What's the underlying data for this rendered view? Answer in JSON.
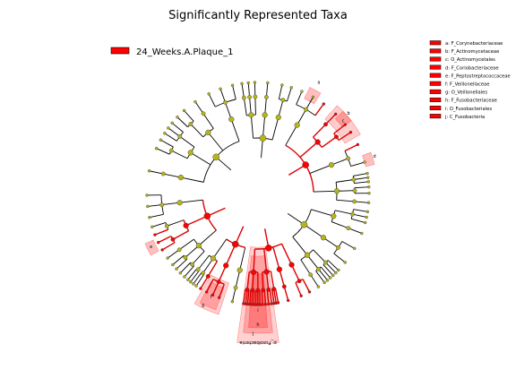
{
  "chart_data": {
    "type": "cladogram",
    "title": "Significantly Represented Taxa",
    "class_legend": [
      {
        "label": "24_Weeks.A.Plaque_1",
        "color": "#ff0000"
      }
    ],
    "colors": {
      "significant_node": "#ff0000",
      "nonsignificant_node": "#b5b51a",
      "highlight_fill": "#ff0000",
      "edge": "#000000"
    },
    "taxa_legend": [
      {
        "letter": "a",
        "name": "a: F_Corynebacteriaceae"
      },
      {
        "letter": "b",
        "name": "b: F_Actinomycetaceae"
      },
      {
        "letter": "c",
        "name": "c: O_Actinomycetales"
      },
      {
        "letter": "d",
        "name": "d: F_Coriobacteriaceae"
      },
      {
        "letter": "e",
        "name": "e: F_Peptostreptococcaceae"
      },
      {
        "letter": "f",
        "name": "f: F_Veillonellaceae"
      },
      {
        "letter": "g",
        "name": "g: O_Veillonellales"
      },
      {
        "letter": "h",
        "name": "h: F_Fusobacteriaceae"
      },
      {
        "letter": "i",
        "name": "i: O_Fusobacteriales"
      },
      {
        "letter": "j",
        "name": "j: C_Fusobacteria"
      }
    ],
    "clade_labels": [
      {
        "letter": "a"
      },
      {
        "letter": "b"
      },
      {
        "letter": "c"
      },
      {
        "letter": "d"
      },
      {
        "letter": "e"
      },
      {
        "letter": "f"
      },
      {
        "letter": "g"
      },
      {
        "letter": "h"
      },
      {
        "letter": "i"
      },
      {
        "letter": "j"
      }
    ],
    "phylum_labels": [
      {
        "text": "p_Fusobacteria"
      }
    ]
  }
}
